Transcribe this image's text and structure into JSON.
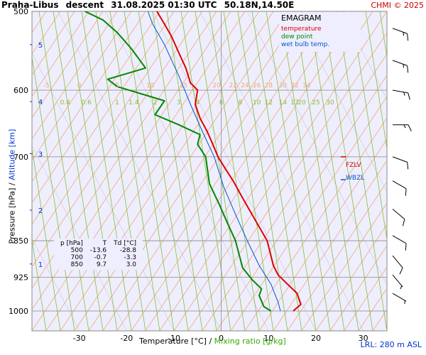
{
  "header": {
    "station": "Praha-Libus",
    "type": "descent",
    "datetime": "31.08.2025 01:30 UTC",
    "coords": "50.18N,14.50E"
  },
  "credit": "CHMI © 2025",
  "legend": {
    "title": "EMAGRAM",
    "temperature": "temperature",
    "dewpoint": "dew point",
    "wetbulb": "wet bulb temp."
  },
  "levels": {
    "fzlv": "FZLV",
    "wbzl": "WBZL"
  },
  "lrl": "LRL: 280 m ASL",
  "axis": {
    "x_title": "Temperature [°C]",
    "x_sep": "/",
    "x_title2": "Mixing ratio [g/kg]",
    "y_title": "Pressure [hPa]",
    "y_sep": "/",
    "y_title2": "Altitude [km]"
  },
  "table": {
    "headers": [
      "p [hPa]",
      "T",
      "Td [°C]"
    ],
    "rows": [
      [
        "500",
        "-13.6",
        "-28.8"
      ],
      [
        "700",
        "-0.7",
        "-3.3"
      ],
      [
        "850",
        "9.7",
        "3.0"
      ]
    ]
  },
  "colors": {
    "temperature": "#dd0000",
    "dewpoint": "#008800",
    "wetbulb": "#0055cc",
    "background": "#eeeeff",
    "isotherm": "#aaaaaa",
    "dry_adiabat": "#f0a878",
    "mixing_ratio": "#88c030",
    "altitude": "#0033cc"
  },
  "chart_data": {
    "type": "line",
    "title": "EMAGRAM",
    "xlabel": "Temperature [°C] / Mixing ratio [g/kg]",
    "ylabel": "Pressure [hPa] / Altitude [km]",
    "xlim": [
      -40,
      35
    ],
    "ylim": [
      1000,
      500
    ],
    "y_scale": "log",
    "grid": true,
    "legend_position": "top-right",
    "x_ticks": [
      -30,
      -20,
      -10,
      0,
      10,
      20,
      30
    ],
    "p_ticks": [
      500,
      600,
      700,
      850,
      925,
      1000
    ],
    "altitude_ticks": [
      {
        "label": "1",
        "p": 897
      },
      {
        "label": "2",
        "p": 792
      },
      {
        "label": "3",
        "p": 695
      },
      {
        "label": "4",
        "p": 616
      },
      {
        "label": "5",
        "p": 540
      }
    ],
    "dry_adiabat_labels": [
      "-5",
      "0",
      "5",
      "10",
      "15",
      "20",
      "22",
      "24",
      "26",
      "28",
      "30",
      "32",
      "34"
    ],
    "dry_adiabat_label_x": [
      -37,
      -30,
      -22,
      -15,
      -8,
      -1,
      2.5,
      5,
      7.5,
      10,
      13,
      15.5,
      18
    ],
    "mixing_ratio_labels": [
      "0.4",
      "0.6",
      "1",
      "1.4",
      "2",
      "3",
      "4",
      "6",
      "8",
      "10",
      "12",
      "14",
      "17",
      "20",
      "25",
      "30"
    ],
    "mixing_ratio_label_x": [
      -33,
      -28.5,
      -22,
      -18.5,
      -14,
      -9,
      -5,
      0,
      4,
      7.5,
      10,
      13,
      15.5,
      17,
      20,
      23
    ],
    "series": [
      {
        "name": "temperature",
        "points": [
          [
            15.2,
            1000
          ],
          [
            16.8,
            985
          ],
          [
            16.0,
            960
          ],
          [
            14.0,
            940
          ],
          [
            12.0,
            920
          ],
          [
            11.0,
            900
          ],
          [
            9.7,
            850
          ],
          [
            6.5,
            800
          ],
          [
            4.5,
            770
          ],
          [
            2.5,
            740
          ],
          [
            0.5,
            715
          ],
          [
            -0.7,
            700
          ],
          [
            -1.8,
            680
          ],
          [
            -3.0,
            660
          ],
          [
            -4.5,
            640
          ],
          [
            -5.5,
            620
          ],
          [
            -5.0,
            600
          ],
          [
            -6.5,
            590
          ],
          [
            -7.5,
            570
          ],
          [
            -9.0,
            550
          ],
          [
            -10.5,
            530
          ],
          [
            -12.0,
            515
          ],
          [
            -13.6,
            500
          ]
        ]
      },
      {
        "name": "dew point",
        "points": [
          [
            10.5,
            1000
          ],
          [
            9.0,
            990
          ],
          [
            8.0,
            965
          ],
          [
            8.5,
            950
          ],
          [
            6.5,
            930
          ],
          [
            4.5,
            905
          ],
          [
            3.0,
            850
          ],
          [
            1.5,
            820
          ],
          [
            -0.5,
            780
          ],
          [
            -2.5,
            745
          ],
          [
            -3.3,
            700
          ],
          [
            -5.0,
            680
          ],
          [
            -4.5,
            665
          ],
          [
            -9.0,
            650
          ],
          [
            -14.0,
            635
          ],
          [
            -12.0,
            615
          ],
          [
            -22.0,
            595
          ],
          [
            -24.0,
            585
          ],
          [
            -16.0,
            570
          ],
          [
            -19.0,
            545
          ],
          [
            -22.0,
            525
          ],
          [
            -25.0,
            510
          ],
          [
            -28.8,
            500
          ]
        ]
      },
      {
        "name": "wet bulb temp.",
        "points": [
          [
            12.5,
            1000
          ],
          [
            12.0,
            980
          ],
          [
            10.5,
            940
          ],
          [
            8.0,
            900
          ],
          [
            5.5,
            850
          ],
          [
            3.0,
            800
          ],
          [
            0.5,
            750
          ],
          [
            -1.5,
            700
          ],
          [
            -4.0,
            660
          ],
          [
            -6.5,
            620
          ],
          [
            -9.0,
            580
          ],
          [
            -12.0,
            540
          ],
          [
            -14.5,
            515
          ],
          [
            -15.5,
            500
          ]
        ]
      }
    ],
    "fzlv_p": 700,
    "wbzl_p": 738,
    "wind_barbs": [
      {
        "p": 520,
        "dir": 290,
        "kt": 15
      },
      {
        "p": 560,
        "dir": 290,
        "kt": 15
      },
      {
        "p": 600,
        "dir": 280,
        "kt": 15
      },
      {
        "p": 650,
        "dir": 270,
        "kt": 15
      },
      {
        "p": 700,
        "dir": 290,
        "kt": 10
      },
      {
        "p": 740,
        "dir": 300,
        "kt": 10
      },
      {
        "p": 790,
        "dir": 310,
        "kt": 10
      },
      {
        "p": 840,
        "dir": 300,
        "kt": 10
      },
      {
        "p": 880,
        "dir": 320,
        "kt": 10
      },
      {
        "p": 920,
        "dir": 320,
        "kt": 5
      },
      {
        "p": 960,
        "dir": 300,
        "kt": 5
      }
    ]
  }
}
